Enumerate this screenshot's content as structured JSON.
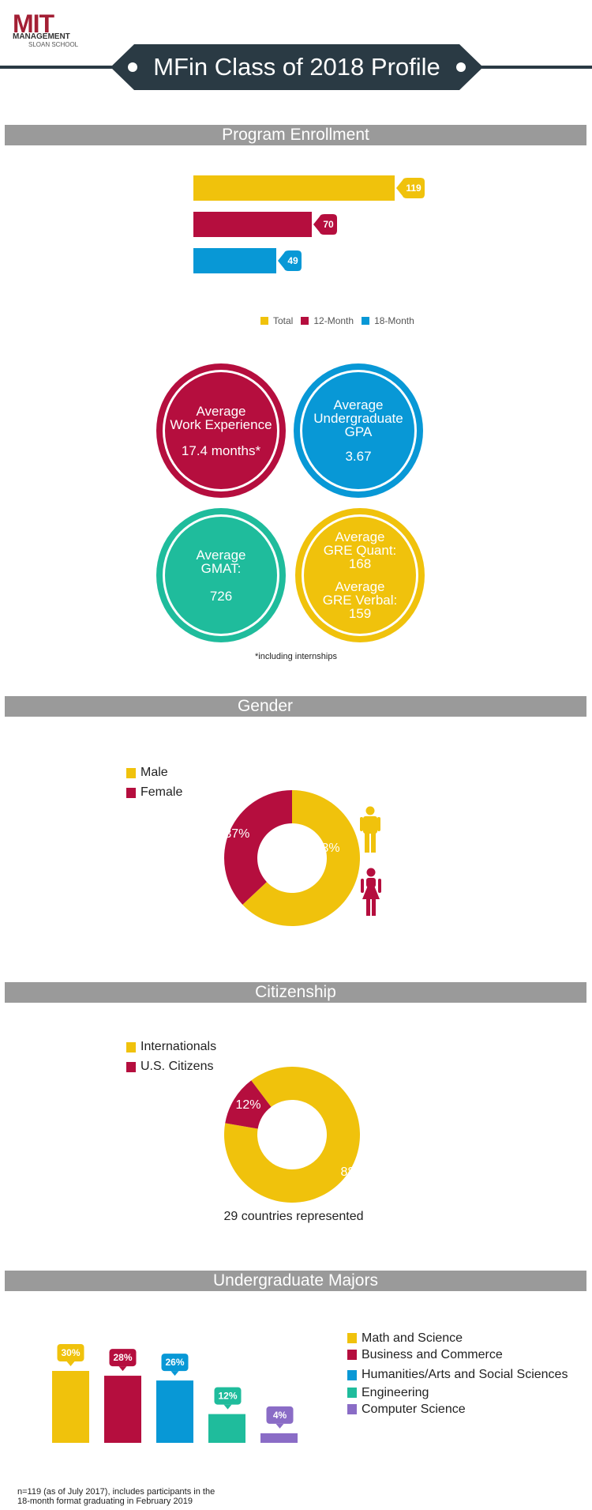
{
  "colors": {
    "total": "#f0c20c",
    "twelve_month": "#b50e3e",
    "eighteen_month": "#0898d6",
    "engineering": "#1fbc9c",
    "computer_science": "#8a6cc6",
    "grey_bar": "#9a9a9a",
    "banner": "#2a3a44",
    "logo_red": "#a31f34"
  },
  "logo": {
    "letters": "MIT",
    "line1": "MANAGEMENT",
    "line2": "SLOAN SCHOOL"
  },
  "header": {
    "title": "MFin Class of 2018 Profile"
  },
  "sections": {
    "enrollment": "Program Enrollment",
    "gender": "Gender",
    "citizenship": "Citizenship",
    "majors": "Undergraduate Majors"
  },
  "stats": {
    "work_exp": {
      "line1": "Average",
      "line2": "Work Experience",
      "value": "17.4 months*"
    },
    "gpa": {
      "line1": "Average",
      "line2": "Undergraduate",
      "line3": "GPA",
      "value": "3.67"
    },
    "gmat": {
      "line1": "Average",
      "line2": "GMAT:",
      "value": "726"
    },
    "gre": {
      "q1": "Average",
      "q2": "GRE Quant:",
      "q3": "168",
      "v1": "Average",
      "v2": "GRE Verbal:",
      "v3": "159"
    },
    "footnote": "*including internships"
  },
  "citizenship_note": "29 countries represented",
  "footer": {
    "line1": "n=119 (as of July 2017), includes participants in the",
    "line2": "18-month format graduating in February 2019"
  },
  "chart_data": [
    {
      "type": "bar",
      "orientation": "horizontal",
      "categories": [
        "Total",
        "12-Month",
        "18-Month"
      ],
      "values": [
        119,
        70,
        49
      ],
      "legend": [
        "Total",
        "12-Month",
        "18-Month"
      ],
      "legend_position": "bottom",
      "xlim": [
        0,
        119
      ]
    },
    {
      "type": "pie",
      "style": "donut",
      "labels": [
        "Male",
        "Female"
      ],
      "values": [
        63,
        37
      ],
      "value_labels": [
        "63%",
        "37%"
      ],
      "legend_position": "top-left"
    },
    {
      "type": "pie",
      "style": "donut",
      "labels": [
        "Internationals",
        "U.S. Citizens"
      ],
      "values": [
        88,
        12
      ],
      "value_labels": [
        "88%",
        "12%"
      ],
      "legend_position": "top-left"
    },
    {
      "type": "bar",
      "categories": [
        "Math and Science",
        "Business and Commerce",
        "Humanities/Arts and Social Sciences",
        "Engineering",
        "Computer Science"
      ],
      "values": [
        30,
        28,
        26,
        12,
        4
      ],
      "value_labels": [
        "30%",
        "28%",
        "26%",
        "12%",
        "4%"
      ],
      "legend": [
        "Math and Science",
        "Business and Commerce",
        "Humanities/Arts and Social Sciences",
        "Engineering",
        "Computer Science"
      ],
      "legend_position": "right",
      "ylim": [
        0,
        30
      ]
    }
  ]
}
